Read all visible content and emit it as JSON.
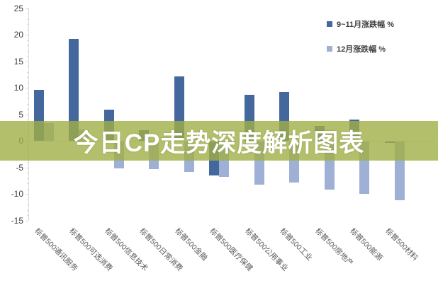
{
  "title": {
    "text": "今日CP走势深度解析图表"
  },
  "legend": {
    "items": [
      {
        "label": "9~11月涨跌幅 %",
        "color": "#44679e"
      },
      {
        "label": "12月涨跌幅 %",
        "color": "#9fb0d6"
      }
    ]
  },
  "chart_data": {
    "type": "bar",
    "categories": [
      "标普500通讯服务",
      "标普500可选消费",
      "标普500信息技术",
      "标普500日常消费",
      "标普500金融",
      "标普500医疗保健",
      "标普500公用事业",
      "标普500工业",
      "标普500房地产",
      "标普500能源",
      "标普500材料"
    ],
    "series": [
      {
        "name": "9~11月涨跌幅 %",
        "color": "#44679e",
        "values": [
          9.6,
          19.2,
          5.9,
          2.0,
          12.1,
          -6.4,
          8.7,
          9.2,
          2.8,
          4.0,
          -0.3
        ]
      },
      {
        "name": "12月涨跌幅 %",
        "color": "#9fb0d6",
        "values": [
          3.4,
          2.1,
          -5.1,
          -5.2,
          -5.7,
          -6.6,
          -8.1,
          -7.7,
          -9.1,
          -9.9,
          -11.1
        ]
      }
    ],
    "y_ticks": [
      25,
      20,
      15,
      10,
      5,
      0,
      -5,
      -10,
      -15
    ],
    "ylim": [
      -15,
      25
    ],
    "grid": false,
    "legend_position": "top-right",
    "banner_color": "#a1af46",
    "axis_color": "#d9d9d9"
  }
}
